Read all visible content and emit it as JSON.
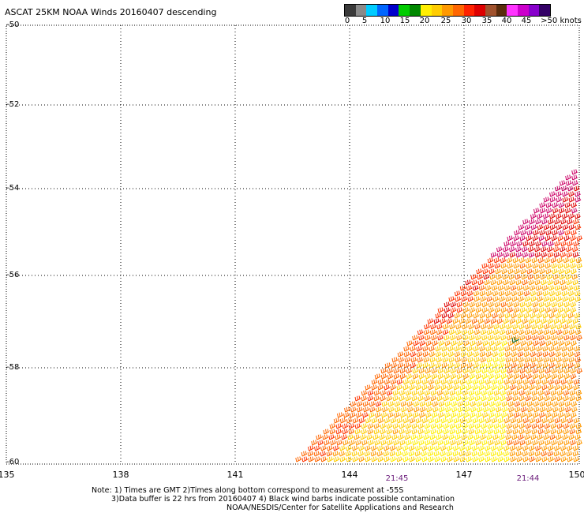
{
  "title": "ASCAT 25KM NOAA Winds 20160407 descending",
  "legend": {
    "colors": [
      "#3a3a3a",
      "#8a8a8a",
      "#00ccff",
      "#0066ff",
      "#0000cc",
      "#00cc00",
      "#008800",
      "#ffee00",
      "#ffcc00",
      "#ff9900",
      "#ff6600",
      "#ff2200",
      "#dd0000",
      "#a0522d",
      "#5a2d0c",
      "#ff33ff",
      "#cc00cc",
      "#8800cc",
      "#330066"
    ],
    "labels": [
      "0",
      "5",
      "10",
      "15",
      "20",
      "25",
      "30",
      "35",
      "40",
      "45",
      ">50 knots"
    ]
  },
  "y_labels": [
    "-50",
    "-52",
    "-54",
    "-56",
    "-58",
    "-60"
  ],
  "x_labels": [
    "135",
    "138",
    "141",
    "144",
    "147",
    "150"
  ],
  "times": [
    "21:45",
    "21:44"
  ],
  "notes": [
    "Note: 1) Times are GMT 2)Times along bottom correspond to measurement at -55S",
    "3)Data buffer is 22 hrs from 20160407 4) Black wind barbs indicate possible contamination",
    "NOAA/NESDIS/Center for Satellite Applications and Research"
  ]
}
